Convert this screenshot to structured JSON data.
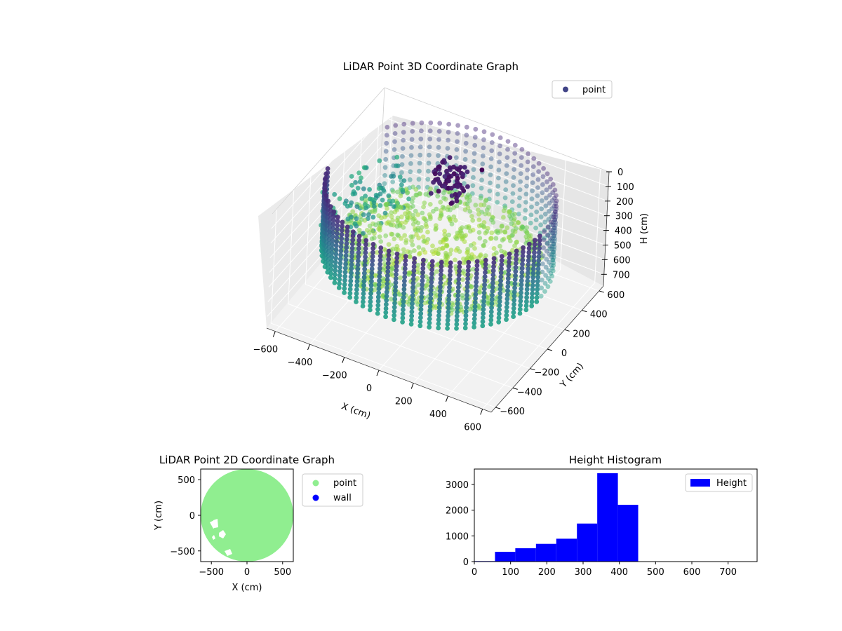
{
  "chart_data": [
    {
      "type": "scatter-3d",
      "title": "LiDAR Point 3D Coordinate Graph",
      "xlabel": "X (cm)",
      "ylabel": "Y (cm)",
      "zlabel": "H (cm)",
      "xlim": [
        -650,
        650
      ],
      "ylim": [
        -650,
        650
      ],
      "zlim": [
        780,
        0
      ],
      "xticks": [
        "−600",
        "−400",
        "−200",
        "0",
        "200",
        "400",
        "600"
      ],
      "yticks": [
        "−600",
        "−400",
        "−200",
        "0",
        "200",
        "400",
        "600"
      ],
      "zticks": [
        "0",
        "100",
        "200",
        "300",
        "400",
        "500",
        "600",
        "700"
      ],
      "legend": {
        "entries": [
          {
            "label": "point",
            "color": "#414487"
          }
        ],
        "placement": "upper-right"
      },
      "colormap": "viridis",
      "grid": true,
      "description_series": [
        {
          "name": "outer wall ring",
          "radius_cm": 600,
          "height_range_cm": [
            0,
            450
          ]
        },
        {
          "name": "inner ground bowl",
          "radius_range_cm": [
            0,
            550
          ],
          "height_range_cm": [
            300,
            420
          ]
        },
        {
          "name": "obstacle cluster",
          "center_cm": [
            -150,
            250
          ],
          "height_range_cm": [
            50,
            200
          ]
        }
      ]
    },
    {
      "type": "scatter",
      "title": "LiDAR Point 2D Coordinate Graph",
      "xlabel": "X (cm)",
      "ylabel": "Y (cm)",
      "xlim": [
        -650,
        650
      ],
      "ylim": [
        -650,
        650
      ],
      "xticks": [
        "−500",
        "0",
        "500"
      ],
      "yticks": [
        "500",
        "0",
        "−500"
      ],
      "legend": {
        "entries": [
          {
            "label": "point",
            "color": "#90ee90"
          },
          {
            "label": "wall",
            "color": "#0000ff"
          }
        ],
        "placement": "outside-right"
      },
      "point_region": {
        "shape": "disc",
        "radius_cm": 650,
        "color": "#90ee90"
      }
    },
    {
      "type": "bar",
      "title": "Height Histogram",
      "xlim": [
        0,
        780
      ],
      "ylim": [
        0,
        3600
      ],
      "xticks": [
        "0",
        "100",
        "200",
        "300",
        "400",
        "500",
        "600",
        "700"
      ],
      "yticks": [
        "0",
        "1000",
        "2000",
        "3000"
      ],
      "legend": {
        "entries": [
          {
            "label": "Height",
            "color": "#0000ff"
          }
        ],
        "placement": "upper-right"
      },
      "bin_width": 57,
      "bins": [
        {
          "start": 0,
          "end": 57,
          "count": 20
        },
        {
          "start": 57,
          "end": 113,
          "count": 380
        },
        {
          "start": 113,
          "end": 170,
          "count": 520
        },
        {
          "start": 170,
          "end": 226,
          "count": 690
        },
        {
          "start": 226,
          "end": 283,
          "count": 890
        },
        {
          "start": 283,
          "end": 339,
          "count": 1480
        },
        {
          "start": 339,
          "end": 396,
          "count": 3440
        },
        {
          "start": 396,
          "end": 452,
          "count": 2210
        }
      ],
      "bar_color": "#0000ff"
    }
  ]
}
